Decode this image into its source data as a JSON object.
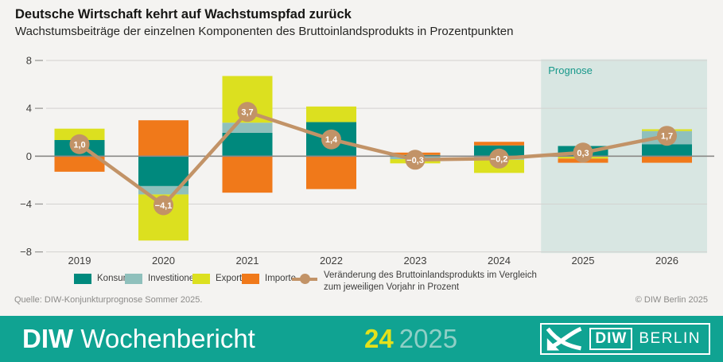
{
  "header": {
    "title": "Deutsche Wirtschaft kehrt auf Wachstumspfad zurück",
    "subtitle": "Wachstumsbeiträge der einzelnen Komponenten des Bruttoinlandsprodukts in Prozentpunkten"
  },
  "chart_data": {
    "type": "bar",
    "variant": "stacked-bars-with-line-overlay",
    "title": "Deutsche Wirtschaft kehrt auf Wachstumspfad zurück",
    "subtitle": "Wachstumsbeiträge der einzelnen Komponenten des Bruttoinlandsprodukts in Prozentpunkten",
    "categories": [
      "2019",
      "2020",
      "2021",
      "2022",
      "2023",
      "2024",
      "2025",
      "2026"
    ],
    "series": [
      {
        "name": "Konsum",
        "color": "#00897d",
        "values": [
          1.35,
          -2.5,
          1.95,
          2.85,
          0.1,
          0.9,
          0.85,
          1.0
        ]
      },
      {
        "name": "Investitionen",
        "color": "#8fc0bc",
        "values": [
          0,
          -0.7,
          0.85,
          0,
          -0.25,
          -0.3,
          0,
          1.1
        ]
      },
      {
        "name": "Exporte",
        "color": "#dce01f",
        "values": [
          0.95,
          -3.85,
          3.9,
          1.3,
          -0.35,
          -1.1,
          -0.2,
          0.15
        ]
      },
      {
        "name": "Importe",
        "color": "#f0791a",
        "values": [
          -1.3,
          3.0,
          -3.05,
          -2.75,
          0.2,
          0.3,
          -0.35,
          -0.55
        ]
      }
    ],
    "line_series": {
      "name": "Veränderung des Bruttoinlandsprodukts im Vergleich zum jeweiligen Vorjahr in Prozent",
      "label_lines": [
        "Veränderung des Bruttoinlandsprodukts im Vergleich",
        "zum jeweiligen Vorjahr in Prozent"
      ],
      "color": "#c29367",
      "values": [
        1.0,
        -4.1,
        3.7,
        1.4,
        -0.3,
        -0.2,
        0.3,
        1.7
      ],
      "labels": [
        "1,0",
        "−4,1",
        "3,7",
        "1,4",
        "−0,3",
        "−0,2",
        "0,3",
        "1,7"
      ]
    },
    "yticks": [
      8,
      4,
      0,
      -4,
      -8
    ],
    "ylim": [
      -8,
      8
    ],
    "grid": true,
    "legend_position": "bottom",
    "prognose": {
      "label": "Prognose",
      "start_category": "2025",
      "bg": "#d8e6e2",
      "label_color": "#17988a"
    }
  },
  "source": {
    "left": "Quelle: DIW-Konjunkturprognose Sommer 2025.",
    "right": "© DIW Berlin 2025"
  },
  "footer": {
    "brand_bold": "DIW",
    "brand_regular": "Wochenbericht",
    "issue_number": "24",
    "issue_year": "2025",
    "logo_diw": "DIW",
    "logo_berlin": "BERLIN"
  }
}
